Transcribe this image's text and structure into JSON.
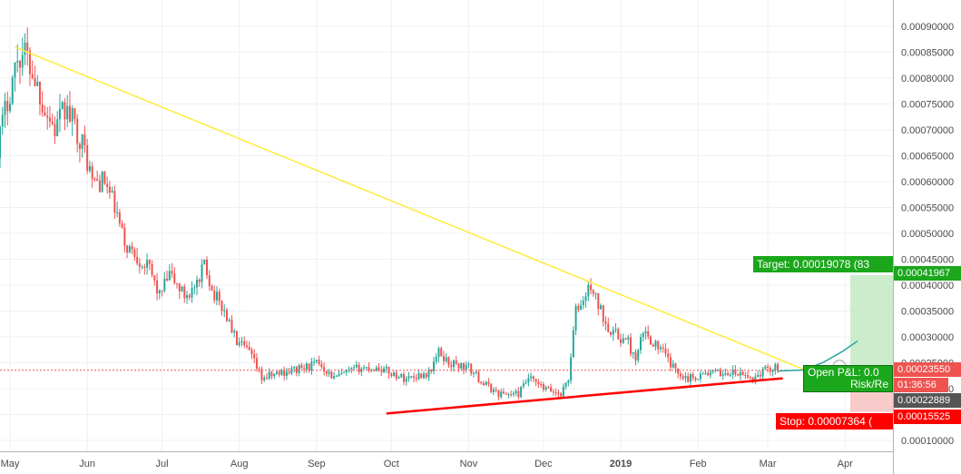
{
  "chart_data": {
    "type": "line",
    "subtype": "candlestick",
    "title": "",
    "xlabel": "",
    "ylabel": "",
    "x_tick_labels": [
      "May",
      "Jun",
      "Jul",
      "Aug",
      "Sep",
      "Oct",
      "Nov",
      "Dec",
      "2019",
      "Feb",
      "Mar",
      "Apr"
    ],
    "y_tick_labels": [
      "0.00090000",
      "0.00085000",
      "0.00080000",
      "0.00075000",
      "0.00070000",
      "0.00065000",
      "0.00060000",
      "0.00055000",
      "0.00050000",
      "0.00045000",
      "0.00040000",
      "0.00035000",
      "0.00030000",
      "0.00025000",
      "0.00020000",
      "0.00015000",
      "0.00010000"
    ],
    "ylim": [
      0.0001,
      0.0009
    ],
    "x_range_days": [
      0,
      330
    ],
    "grid": true,
    "colors": {
      "up": "#26a69a",
      "down": "#ef5350",
      "grid": "#eef0f3",
      "resistance_line": "#ffeb3b",
      "support_line": "#ff0000",
      "target_tag": "#1ba71b",
      "stop_tag": "#ff0000",
      "price_tag": "#ef5350",
      "profit_zone": "#c7ebc7",
      "loss_zone": "#f7c4c4",
      "projection": "#26a69a"
    },
    "price_path": [
      {
        "day": -5,
        "price": 0.00067
      },
      {
        "day": 1,
        "price": 0.0008
      },
      {
        "day": 3,
        "price": 0.00084
      },
      {
        "day": 6,
        "price": 0.00085
      },
      {
        "day": 10,
        "price": 0.0008
      },
      {
        "day": 14,
        "price": 0.00074
      },
      {
        "day": 18,
        "price": 0.0007
      },
      {
        "day": 22,
        "price": 0.00074
      },
      {
        "day": 26,
        "price": 0.00071
      },
      {
        "day": 30,
        "price": 0.00066
      },
      {
        "day": 33,
        "price": 0.0006
      },
      {
        "day": 38,
        "price": 0.0006
      },
      {
        "day": 42,
        "price": 0.00055
      },
      {
        "day": 46,
        "price": 0.00048
      },
      {
        "day": 50,
        "price": 0.00046
      },
      {
        "day": 56,
        "price": 0.00043
      },
      {
        "day": 60,
        "price": 0.00038
      },
      {
        "day": 64,
        "price": 0.00042
      },
      {
        "day": 70,
        "price": 0.00038
      },
      {
        "day": 76,
        "price": 0.0004
      },
      {
        "day": 78,
        "price": 0.00045
      },
      {
        "day": 81,
        "price": 0.00039
      },
      {
        "day": 86,
        "price": 0.00035
      },
      {
        "day": 91,
        "price": 0.00029
      },
      {
        "day": 96,
        "price": 0.00027
      },
      {
        "day": 101,
        "price": 0.00022
      },
      {
        "day": 108,
        "price": 0.00023
      },
      {
        "day": 118,
        "price": 0.00024
      },
      {
        "day": 124,
        "price": 0.00025
      },
      {
        "day": 130,
        "price": 0.00022
      },
      {
        "day": 140,
        "price": 0.00024
      },
      {
        "day": 148,
        "price": 0.00024
      },
      {
        "day": 158,
        "price": 0.00022
      },
      {
        "day": 168,
        "price": 0.00023
      },
      {
        "day": 172,
        "price": 0.00027
      },
      {
        "day": 176,
        "price": 0.00025
      },
      {
        "day": 184,
        "price": 0.00024
      },
      {
        "day": 190,
        "price": 0.00021
      },
      {
        "day": 196,
        "price": 0.00019
      },
      {
        "day": 204,
        "price": 0.00019
      },
      {
        "day": 208,
        "price": 0.00022
      },
      {
        "day": 214,
        "price": 0.0002
      },
      {
        "day": 221,
        "price": 0.00019
      },
      {
        "day": 224,
        "price": 0.00022
      },
      {
        "day": 227,
        "price": 0.00035
      },
      {
        "day": 230,
        "price": 0.00037
      },
      {
        "day": 233,
        "price": 0.0004
      },
      {
        "day": 236,
        "price": 0.00036
      },
      {
        "day": 240,
        "price": 0.00032
      },
      {
        "day": 244,
        "price": 0.0003
      },
      {
        "day": 248,
        "price": 0.00029
      },
      {
        "day": 251,
        "price": 0.00025
      },
      {
        "day": 254,
        "price": 0.00031
      },
      {
        "day": 258,
        "price": 0.00029
      },
      {
        "day": 262,
        "price": 0.00027
      },
      {
        "day": 266,
        "price": 0.00024
      },
      {
        "day": 272,
        "price": 0.00022
      },
      {
        "day": 280,
        "price": 0.00023
      },
      {
        "day": 290,
        "price": 0.00023
      },
      {
        "day": 298,
        "price": 0.00022
      },
      {
        "day": 304,
        "price": 0.00024
      },
      {
        "day": 308,
        "price": 0.00024
      }
    ],
    "resistance_line": {
      "start": {
        "day": 2,
        "price": 0.00086
      },
      "end": {
        "day": 319,
        "price": 0.000236
      }
    },
    "support_line": {
      "start": {
        "day": 151,
        "price": 0.000152
      },
      "end": {
        "day": 310,
        "price": 0.00022
      }
    },
    "position": {
      "entry_price": 0.0002355,
      "target_price": 0.00041967,
      "stop_price": 0.00015525,
      "start_day": 308,
      "projection": [
        {
          "day": 308,
          "price": 0.000234
        },
        {
          "day": 318,
          "price": 0.000236
        },
        {
          "day": 326,
          "price": 0.00025
        },
        {
          "day": 334,
          "price": 0.000272
        },
        {
          "day": 340,
          "price": 0.000292
        }
      ]
    },
    "price_tags": {
      "target": "0.00041967",
      "last": "0.00023550",
      "countdown": "01:36:56",
      "line": "0.00022889",
      "stop": "0.00015525"
    },
    "annotations": {
      "target": "Target: 0.00019078 (83",
      "stop": "Stop: 0.00007364 (",
      "open_pl": "Open P&L: 0.0",
      "risk_reward": "Risk/Re"
    }
  }
}
